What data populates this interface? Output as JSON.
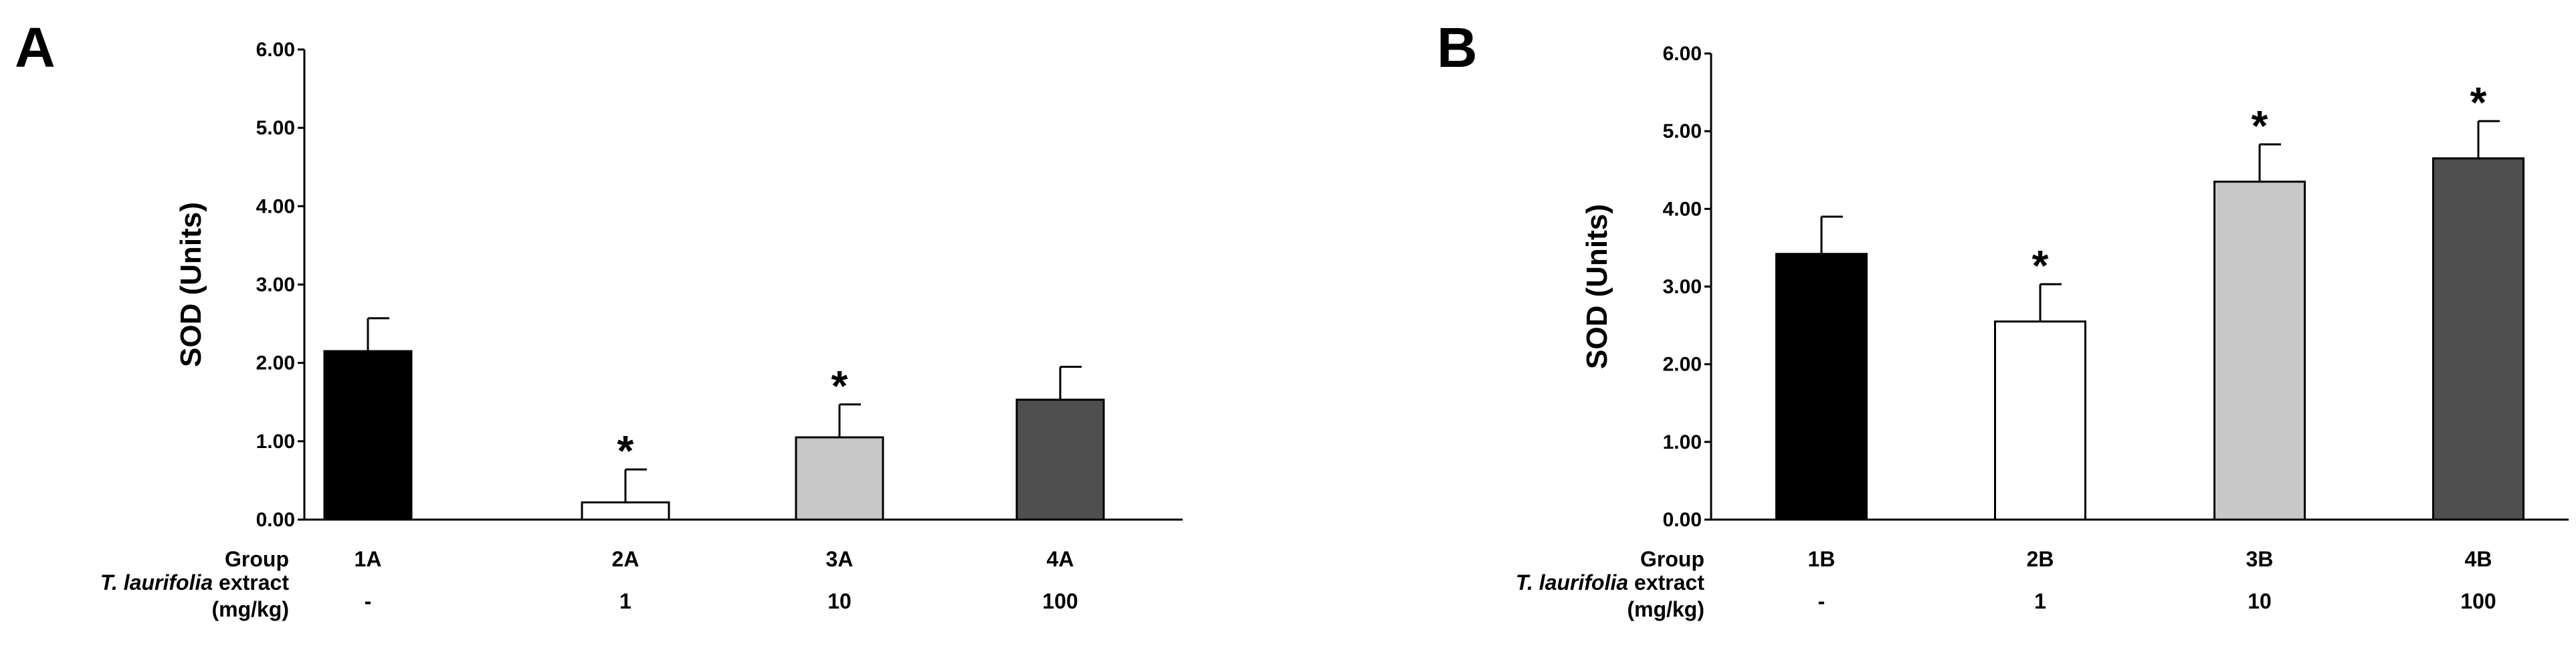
{
  "chart_data": [
    {
      "panel": "A",
      "type": "bar",
      "ylabel": "SOD (Units)",
      "ylim": [
        0,
        6
      ],
      "yticks": [
        "0.00",
        "1.00",
        "2.00",
        "3.00",
        "4.00",
        "5.00",
        "6.00"
      ],
      "row_labels": {
        "group": "Group",
        "extract_italic": "T. laurifolia",
        "extract_rest": " extract",
        "unit": "(mg/kg)"
      },
      "categories": [
        "1A",
        "2A",
        "3A",
        "4A"
      ],
      "doses": [
        "-",
        "1",
        "10",
        "100"
      ],
      "values": [
        2.15,
        0.22,
        1.05,
        1.53
      ],
      "errors": [
        0.42,
        0.42,
        0.42,
        0.42
      ],
      "significant": [
        "",
        "*",
        "*",
        ""
      ],
      "colors": [
        "#000000",
        "#ffffff",
        "#c8c8c8",
        "#4f4f4f"
      ]
    },
    {
      "panel": "B",
      "type": "bar",
      "ylabel": "SOD (Units)",
      "ylim": [
        0,
        6
      ],
      "yticks": [
        "0.00",
        "1.00",
        "2.00",
        "3.00",
        "4.00",
        "5.00",
        "6.00"
      ],
      "row_labels": {
        "group": "Group",
        "extract_italic": "T. laurifolia",
        "extract_rest": " extract",
        "unit": "(mg/kg)"
      },
      "categories": [
        "1B",
        "2B",
        "3B",
        "4B"
      ],
      "doses": [
        "-",
        "1",
        "10",
        "100"
      ],
      "values": [
        3.42,
        2.55,
        4.35,
        4.65
      ],
      "errors": [
        0.48,
        0.48,
        0.48,
        0.48
      ],
      "significant": [
        "",
        "*",
        "*",
        "*"
      ],
      "colors": [
        "#000000",
        "#ffffff",
        "#c8c8c8",
        "#4f4f4f"
      ]
    }
  ]
}
